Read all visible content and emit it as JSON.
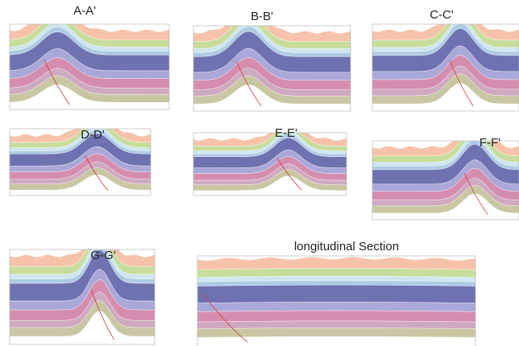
{
  "sections": [
    {
      "label": "A-A'"
    },
    {
      "label": "B-B'"
    },
    {
      "label": "C-C'"
    },
    {
      "label": "D-D'"
    },
    {
      "label": "E-E'"
    },
    {
      "label": "F-F'"
    },
    {
      "label": "G-G'"
    },
    {
      "label": "longitudinal Section"
    }
  ]
}
